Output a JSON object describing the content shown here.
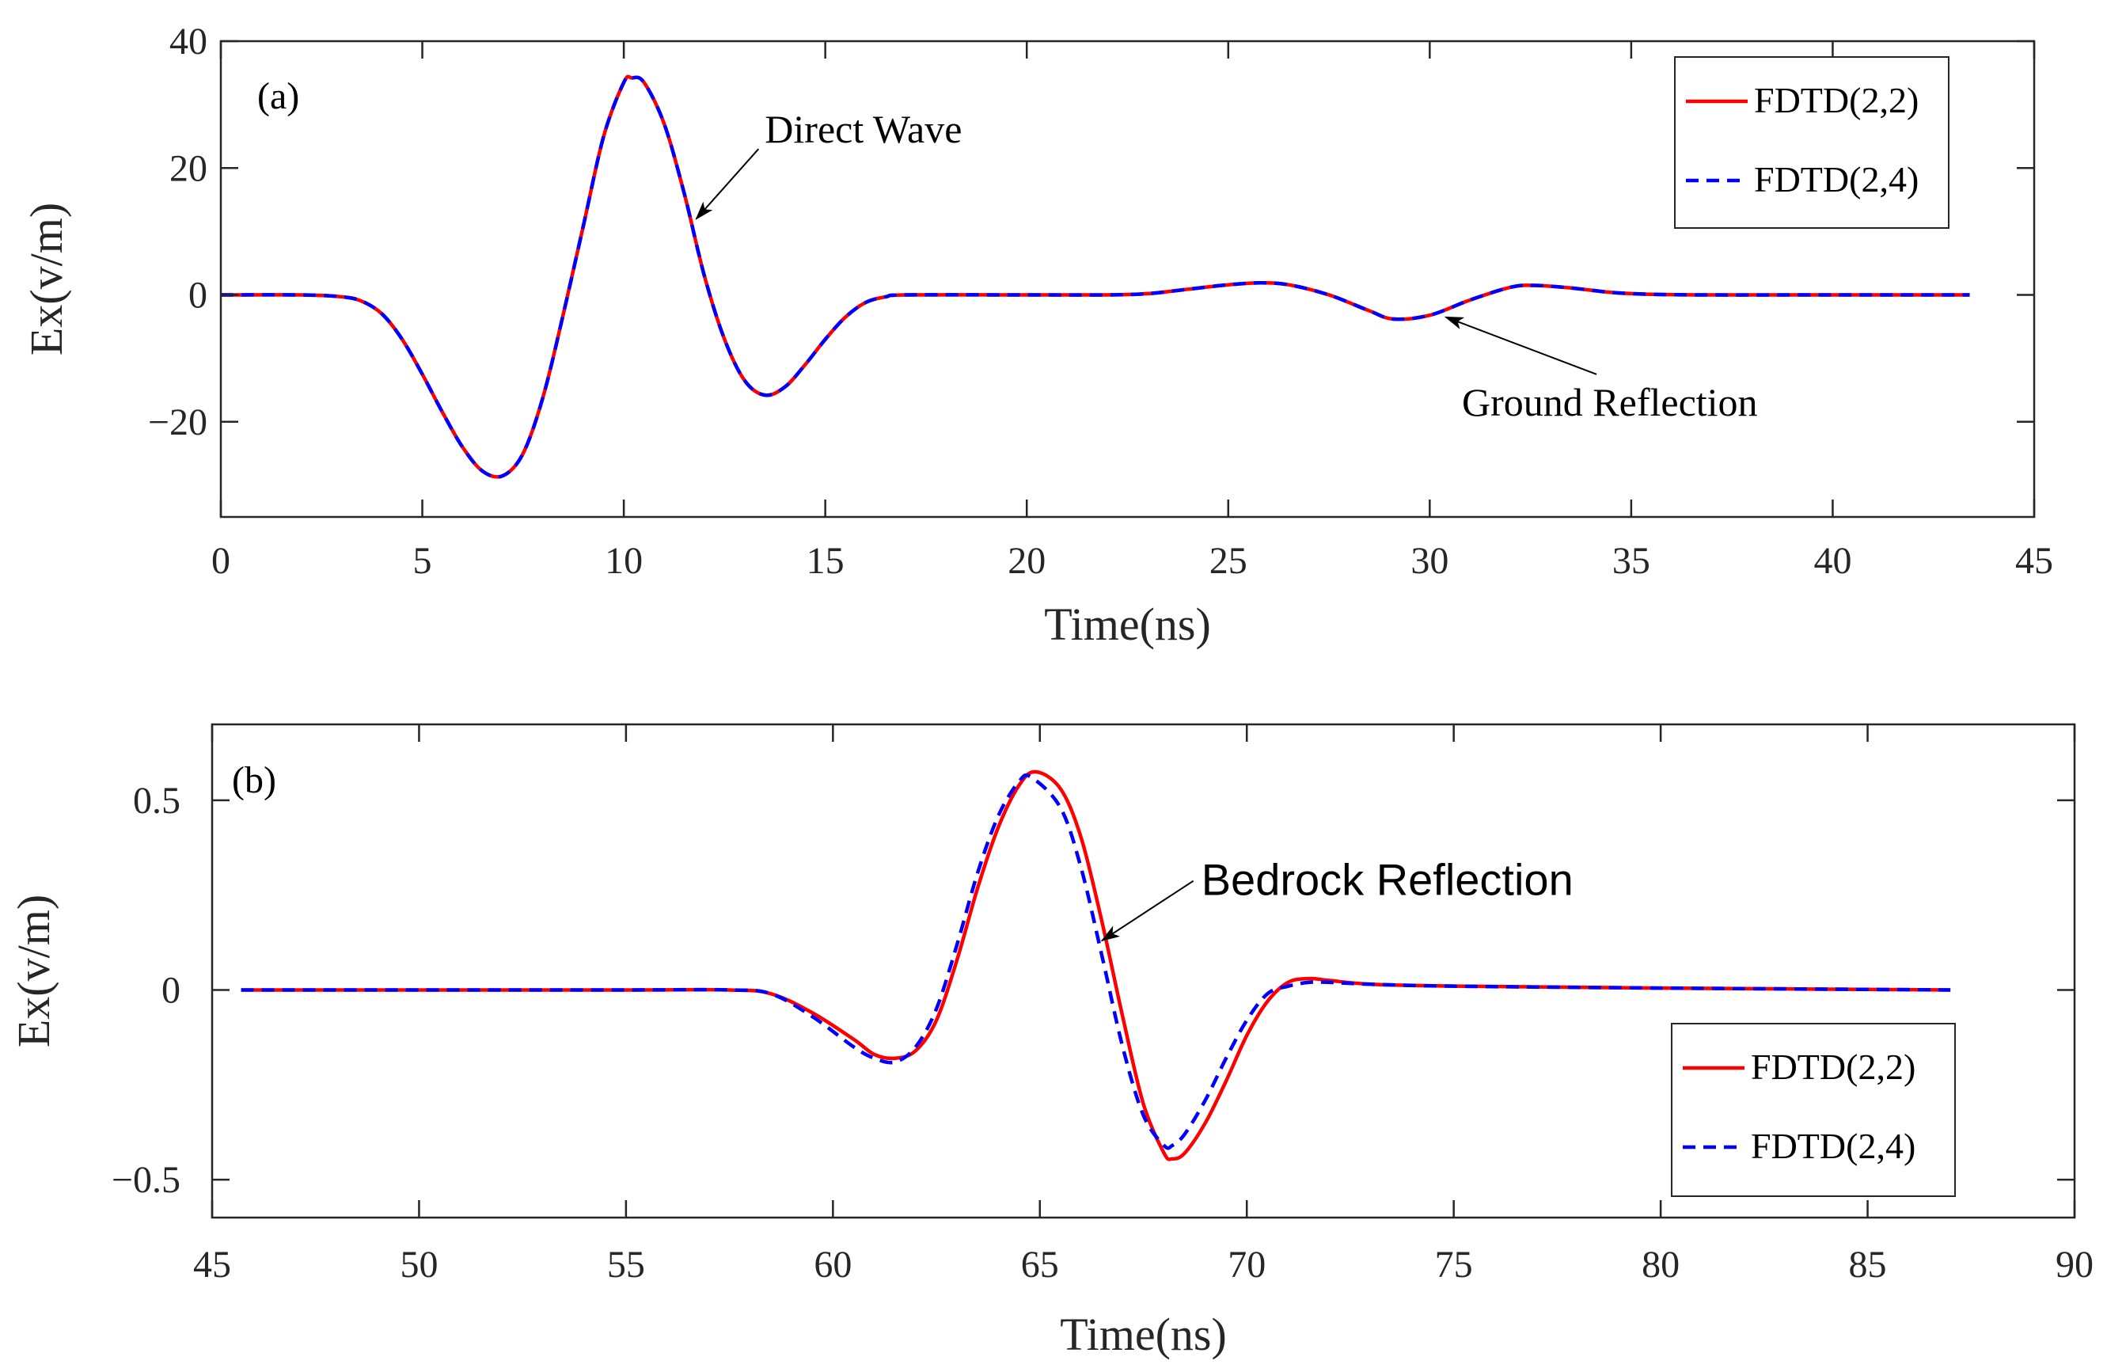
{
  "chart_data": [
    {
      "type": "line",
      "panel_label": "(a)",
      "xlabel": "Time(ns)",
      "ylabel": "Ex(v/m)",
      "xlim": [
        0,
        45
      ],
      "ylim": [
        -35,
        40
      ],
      "xticks": [
        0,
        5,
        10,
        15,
        20,
        25,
        30,
        35,
        40,
        45
      ],
      "xtick_labels": [
        "0",
        "5",
        "10",
        "15",
        "20",
        "25",
        "30",
        "35",
        "40",
        "45"
      ],
      "yticks": [
        -20,
        0,
        20,
        40
      ],
      "ytick_labels": [
        "−20",
        "0",
        "20",
        "40"
      ],
      "legend_position": "top-right",
      "series": [
        {
          "name": "FDTD(2,2)",
          "color": "#ff0000",
          "style": "solid",
          "x": [
            0,
            2,
            3,
            3.5,
            4,
            4.5,
            5,
            5.5,
            6,
            6.5,
            7,
            7.5,
            8,
            8.5,
            9,
            9.5,
            10,
            10.2,
            10.5,
            11,
            11.5,
            12,
            12.5,
            13,
            13.5,
            14,
            14.5,
            15,
            15.5,
            16,
            16.5,
            17,
            20,
            22,
            23,
            24,
            25,
            25.8,
            26.5,
            27.5,
            28.5,
            29.1,
            30,
            31,
            32,
            32.6,
            33.5,
            34.5,
            35.5,
            37,
            40,
            43.4
          ],
          "y": [
            0,
            0,
            -0.3,
            -1,
            -3,
            -7,
            -12.5,
            -18.5,
            -24,
            -27.8,
            -28.5,
            -25,
            -16,
            -3,
            11,
            25,
            33.5,
            34.2,
            33.5,
            27,
            16,
            3,
            -7,
            -13.5,
            -15.8,
            -14.5,
            -11,
            -7,
            -3.5,
            -1.2,
            -0.3,
            0,
            0,
            0,
            0.2,
            0.9,
            1.6,
            1.9,
            1.6,
            0,
            -2.5,
            -3.8,
            -3.2,
            -0.8,
            1.2,
            1.5,
            1.1,
            0.4,
            0.1,
            0,
            0,
            0
          ]
        },
        {
          "name": "FDTD(2,4)",
          "color": "#0000ff",
          "style": "dashed",
          "x": [
            0,
            2,
            3,
            3.5,
            4,
            4.5,
            5,
            5.5,
            6,
            6.5,
            7,
            7.5,
            8,
            8.5,
            9,
            9.5,
            10,
            10.2,
            10.5,
            11,
            11.5,
            12,
            12.5,
            13,
            13.5,
            14,
            14.5,
            15,
            15.5,
            16,
            16.5,
            17,
            20,
            22,
            23,
            24,
            25,
            25.8,
            26.5,
            27.5,
            28.5,
            29.1,
            30,
            31,
            32,
            32.6,
            33.5,
            34.5,
            35.5,
            37,
            40,
            43.4
          ],
          "y": [
            0,
            0,
            -0.3,
            -1,
            -3,
            -7,
            -12.5,
            -18.5,
            -24,
            -27.8,
            -28.5,
            -25,
            -16,
            -3,
            11,
            25,
            33.5,
            34.2,
            33.5,
            27,
            16,
            3,
            -7,
            -13.5,
            -15.8,
            -14.5,
            -11,
            -7,
            -3.5,
            -1.2,
            -0.3,
            0,
            0,
            0,
            0.2,
            0.9,
            1.6,
            1.9,
            1.6,
            0,
            -2.5,
            -3.8,
            -3.2,
            -0.8,
            1.2,
            1.5,
            1.1,
            0.4,
            0.1,
            0,
            0,
            0
          ]
        }
      ],
      "annotations": [
        {
          "text": "Direct Wave",
          "tip_x": 11.8,
          "tip_y": 12,
          "text_x": 13.5,
          "text_y": 24,
          "font": "serif"
        },
        {
          "text": "Ground Reflection",
          "tip_x": 30.4,
          "tip_y": -3.5,
          "text_x": 30.8,
          "text_y": -19,
          "font": "serif"
        }
      ]
    },
    {
      "type": "line",
      "panel_label": "(b)",
      "xlabel": "Time(ns)",
      "ylabel": "Ex(v/m)",
      "xlim": [
        45,
        90
      ],
      "ylim": [
        -0.6,
        0.7
      ],
      "xticks": [
        45,
        50,
        55,
        60,
        65,
        70,
        75,
        80,
        85,
        90
      ],
      "xtick_labels": [
        "45",
        "50",
        "55",
        "60",
        "65",
        "70",
        "75",
        "80",
        "85",
        "90"
      ],
      "yticks": [
        -0.5,
        0,
        0.5
      ],
      "ytick_labels": [
        "−0.5",
        "0",
        "0.5"
      ],
      "legend_position": "bottom-right",
      "series": [
        {
          "name": "FDTD(2,2)",
          "color": "#ff0000",
          "style": "solid",
          "x": [
            45.7,
            50,
            55,
            57.5,
            58.5,
            59.5,
            60.5,
            61,
            61.5,
            62,
            62.5,
            63,
            63.5,
            64,
            64.5,
            64.9,
            65.5,
            66,
            66.5,
            67,
            67.5,
            68,
            68.2,
            68.5,
            69,
            69.5,
            70,
            70.5,
            71,
            71.5,
            72,
            73,
            75,
            80,
            87
          ],
          "y": [
            0,
            0,
            0,
            0,
            -0.01,
            -0.06,
            -0.13,
            -0.17,
            -0.18,
            -0.16,
            -0.08,
            0.08,
            0.27,
            0.43,
            0.54,
            0.575,
            0.53,
            0.4,
            0.18,
            -0.07,
            -0.3,
            -0.43,
            -0.445,
            -0.43,
            -0.35,
            -0.24,
            -0.12,
            -0.03,
            0.02,
            0.03,
            0.025,
            0.015,
            0.01,
            0.005,
            0
          ]
        },
        {
          "name": "FDTD(2,4)",
          "color": "#0000ff",
          "style": "dashed",
          "x": [
            45.7,
            50,
            55,
            57.5,
            58.5,
            59.5,
            60.5,
            61,
            61.5,
            62,
            62.5,
            63,
            63.5,
            64,
            64.5,
            64.8,
            65.5,
            66,
            66.5,
            67,
            67.5,
            68,
            68.2,
            68.5,
            69,
            69.5,
            70,
            70.5,
            71,
            71.5,
            72,
            73,
            75,
            80,
            87
          ],
          "y": [
            0,
            0,
            0,
            0,
            -0.01,
            -0.07,
            -0.15,
            -0.18,
            -0.19,
            -0.15,
            -0.05,
            0.12,
            0.31,
            0.46,
            0.55,
            0.56,
            0.48,
            0.32,
            0.09,
            -0.15,
            -0.33,
            -0.41,
            -0.41,
            -0.38,
            -0.29,
            -0.18,
            -0.08,
            -0.01,
            0.01,
            0.02,
            0.02,
            0.015,
            0.01,
            0.005,
            0
          ]
        }
      ],
      "annotations": [
        {
          "text": "Bedrock Reflection",
          "tip_x": 66.5,
          "tip_y": 0.13,
          "text_x": 68.9,
          "text_y": 0.25,
          "font": "sans"
        }
      ]
    }
  ]
}
